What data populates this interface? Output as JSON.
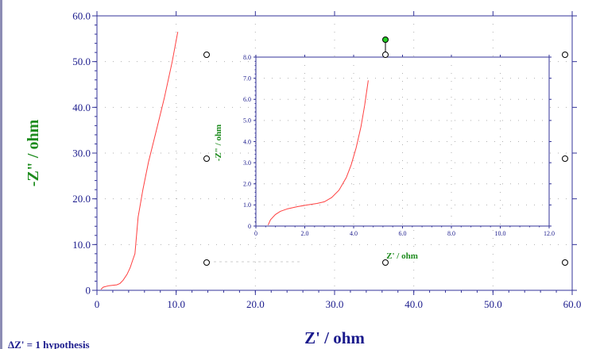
{
  "chart_data": [
    {
      "type": "line",
      "xlabel": "Z' / ohm",
      "ylabel": "-Z\" / ohm",
      "xlim": [
        0,
        60
      ],
      "ylim": [
        0,
        60
      ],
      "x_ticks": [
        "0",
        "10.0",
        "20.0",
        "30.0",
        "40.0",
        "50.0",
        "60.0"
      ],
      "y_ticks": [
        "0",
        "10.0",
        "20.0",
        "30.0",
        "40.0",
        "50.0",
        "60.0"
      ],
      "grid": "dotted",
      "series": [
        {
          "color": "#ff4040",
          "x": [
            0.5,
            0.8,
            1.5,
            2.5,
            2.9,
            3.3,
            3.8,
            4.2,
            4.5,
            4.8,
            5.0,
            5.2,
            5.8,
            6.5,
            7.5,
            8.5,
            9.5,
            10.2
          ],
          "y": [
            0.2,
            0.7,
            1.0,
            1.2,
            1.5,
            2.2,
            3.5,
            5.0,
            6.5,
            8.0,
            12.0,
            16.0,
            22.0,
            28.0,
            35.0,
            42.0,
            50.0,
            56.5
          ]
        }
      ]
    },
    {
      "type": "line",
      "xlabel": "Z' / ohm",
      "ylabel": "-Z\" / ohm",
      "xlim": [
        0,
        12
      ],
      "ylim": [
        0,
        8
      ],
      "x_ticks": [
        "0",
        "2.0",
        "4.0",
        "6.0",
        "8.0",
        "10.0",
        "12.0"
      ],
      "y_ticks": [
        "0",
        "1.0",
        "2.0",
        "3.0",
        "4.0",
        "5.0",
        "6.0",
        "7.0",
        "8.0"
      ],
      "grid": "dotted",
      "series": [
        {
          "color": "#ff4040",
          "x": [
            0.5,
            0.6,
            0.8,
            1.0,
            1.3,
            1.7,
            2.1,
            2.5,
            2.8,
            3.1,
            3.4,
            3.7,
            3.9,
            4.1,
            4.3,
            4.45,
            4.6
          ],
          "y": [
            0.05,
            0.3,
            0.55,
            0.7,
            0.82,
            0.92,
            1.0,
            1.07,
            1.15,
            1.35,
            1.7,
            2.3,
            2.9,
            3.7,
            4.7,
            5.7,
            6.9
          ]
        }
      ]
    }
  ],
  "footer_fragment": "ΔZ' = 1 hypothesis"
}
